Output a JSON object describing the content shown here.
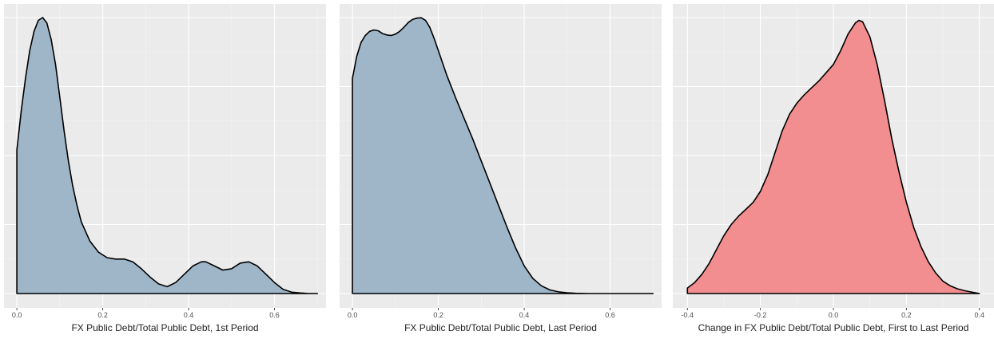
{
  "chart_data": [
    {
      "type": "area",
      "xlabel": "FX Public Debt/Total Public Debt, 1st Period",
      "ylabel": "",
      "xlim": [
        -0.03,
        0.72
      ],
      "ylim": [
        0,
        1.0
      ],
      "xticks": [
        0.0,
        0.2,
        0.4,
        0.6
      ],
      "xtick_labels": [
        "0.0",
        "0.2",
        "0.4",
        "0.6"
      ],
      "grid": true,
      "fill_color": "#9fb6c9",
      "series": [
        {
          "x": [
            0.0,
            0.01,
            0.02,
            0.03,
            0.04,
            0.05,
            0.06,
            0.07,
            0.08,
            0.09,
            0.1,
            0.11,
            0.12,
            0.13,
            0.14,
            0.15,
            0.17,
            0.19,
            0.21,
            0.23,
            0.25,
            0.27,
            0.29,
            0.31,
            0.33,
            0.35,
            0.37,
            0.39,
            0.41,
            0.43,
            0.44,
            0.46,
            0.48,
            0.5,
            0.52,
            0.54,
            0.56,
            0.58,
            0.6,
            0.62,
            0.64,
            0.66,
            0.68,
            0.7
          ],
          "y": [
            0.52,
            0.66,
            0.78,
            0.88,
            0.95,
            0.99,
            1.0,
            0.98,
            0.92,
            0.83,
            0.71,
            0.59,
            0.48,
            0.39,
            0.32,
            0.26,
            0.19,
            0.15,
            0.13,
            0.125,
            0.125,
            0.115,
            0.09,
            0.06,
            0.035,
            0.025,
            0.04,
            0.07,
            0.1,
            0.115,
            0.115,
            0.1,
            0.085,
            0.09,
            0.11,
            0.115,
            0.1,
            0.07,
            0.04,
            0.015,
            0.005,
            0.002,
            0.0,
            0.0
          ]
        }
      ]
    },
    {
      "type": "area",
      "xlabel": "FX Public Debt/Total Public Debt, Last Period",
      "ylabel": "",
      "xlim": [
        -0.03,
        0.72
      ],
      "ylim": [
        0,
        1.0
      ],
      "xticks": [
        0.0,
        0.2,
        0.4,
        0.6
      ],
      "xtick_labels": [
        "0.0",
        "0.2",
        "0.4",
        "0.6"
      ],
      "grid": true,
      "fill_color": "#9fb6c9",
      "series": [
        {
          "x": [
            0.0,
            0.01,
            0.02,
            0.03,
            0.04,
            0.05,
            0.06,
            0.07,
            0.08,
            0.09,
            0.1,
            0.11,
            0.12,
            0.13,
            0.14,
            0.15,
            0.16,
            0.17,
            0.18,
            0.19,
            0.2,
            0.22,
            0.24,
            0.26,
            0.28,
            0.3,
            0.32,
            0.34,
            0.36,
            0.38,
            0.4,
            0.42,
            0.44,
            0.46,
            0.48,
            0.5,
            0.52,
            0.55,
            0.6,
            0.65,
            0.7
          ],
          "y": [
            0.78,
            0.86,
            0.91,
            0.935,
            0.95,
            0.955,
            0.952,
            0.942,
            0.937,
            0.935,
            0.94,
            0.95,
            0.965,
            0.982,
            0.993,
            0.998,
            0.999,
            0.99,
            0.965,
            0.925,
            0.88,
            0.79,
            0.71,
            0.635,
            0.56,
            0.48,
            0.4,
            0.32,
            0.24,
            0.165,
            0.1,
            0.055,
            0.028,
            0.013,
            0.006,
            0.003,
            0.001,
            0.0,
            0.0,
            0.0,
            0.0
          ]
        }
      ]
    },
    {
      "type": "area",
      "xlabel": "Change in FX Public Debt/Total Public Debt, First to Last Period",
      "ylabel": "",
      "xlim": [
        -0.44,
        0.44
      ],
      "ylim": [
        0,
        1.0
      ],
      "xticks": [
        -0.4,
        -0.2,
        0.0,
        0.2,
        0.4
      ],
      "xtick_labels": [
        "-0.4",
        "-0.2",
        "0.0",
        "0.2",
        "0.4"
      ],
      "grid": true,
      "fill_color": "#f28e8f",
      "series": [
        {
          "x": [
            -0.4,
            -0.38,
            -0.36,
            -0.34,
            -0.32,
            -0.3,
            -0.28,
            -0.26,
            -0.24,
            -0.22,
            -0.2,
            -0.18,
            -0.16,
            -0.14,
            -0.12,
            -0.1,
            -0.08,
            -0.06,
            -0.04,
            -0.02,
            0.0,
            0.02,
            0.04,
            0.06,
            0.07,
            0.08,
            0.1,
            0.12,
            0.14,
            0.16,
            0.18,
            0.2,
            0.22,
            0.24,
            0.26,
            0.28,
            0.3,
            0.32,
            0.34,
            0.36,
            0.38,
            0.4
          ],
          "y": [
            0.02,
            0.04,
            0.07,
            0.11,
            0.16,
            0.21,
            0.25,
            0.28,
            0.305,
            0.33,
            0.37,
            0.43,
            0.51,
            0.59,
            0.65,
            0.69,
            0.72,
            0.745,
            0.77,
            0.8,
            0.83,
            0.88,
            0.94,
            0.98,
            0.99,
            0.985,
            0.93,
            0.83,
            0.7,
            0.56,
            0.44,
            0.33,
            0.24,
            0.17,
            0.115,
            0.075,
            0.045,
            0.028,
            0.017,
            0.01,
            0.005,
            0.0
          ]
        }
      ]
    }
  ]
}
